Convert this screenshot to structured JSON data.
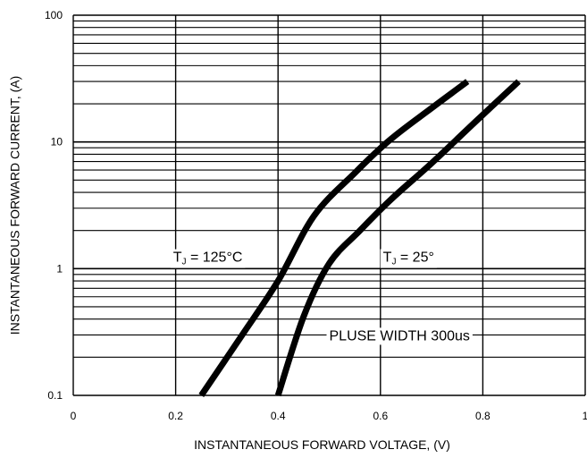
{
  "chart_data": {
    "type": "line",
    "title": "",
    "xlabel": "INSTANTANEOUS FORWARD VOLTAGE,  (V)",
    "ylabel": "INSTANTANEOUS FORWARD CURRENT, (A)",
    "xlim": [
      0,
      1
    ],
    "ylim": [
      0.1,
      100
    ],
    "yscale": "log",
    "grid": true,
    "x_ticks": [
      {
        "value": 0,
        "label": "0"
      },
      {
        "value": 0.2,
        "label": "0.2"
      },
      {
        "value": 0.4,
        "label": "0.4"
      },
      {
        "value": 0.6,
        "label": "0.6"
      },
      {
        "value": 0.8,
        "label": "0.8"
      },
      {
        "value": 1,
        "label": "1"
      }
    ],
    "y_ticks": [
      {
        "value": 0.1,
        "label": "0.1"
      },
      {
        "value": 1,
        "label": "1"
      },
      {
        "value": 10,
        "label": "10"
      },
      {
        "value": 100,
        "label": "100"
      }
    ],
    "series": [
      {
        "x": [
          0.25,
          0.33,
          0.4,
          0.47,
          0.55,
          0.62,
          0.7,
          0.77
        ],
        "y": [
          0.1,
          0.3,
          0.8,
          2.6,
          5.7,
          10.5,
          18.5,
          30
        ]
      },
      {
        "x": [
          0.4,
          0.45,
          0.5,
          0.56,
          0.62,
          0.7,
          0.79,
          0.87
        ],
        "y": [
          0.1,
          0.42,
          1.1,
          2.0,
          3.5,
          6.8,
          15.0,
          30
        ]
      }
    ],
    "annotations": [
      {
        "id": "tj125",
        "pre": "T",
        "sub": "J",
        "post": " = 125°C",
        "x": 0.195,
        "y": 1.25
      },
      {
        "id": "tj25",
        "pre": "T",
        "sub": "J",
        "post": " = 25°",
        "x": 0.605,
        "y": 1.25
      },
      {
        "id": "pulse",
        "text": "PLUSE WIDTH 300us",
        "x": 0.5,
        "y": 0.3
      }
    ],
    "colors": {
      "line": "#000000",
      "grid": "#000000",
      "background": "#ffffff"
    }
  }
}
